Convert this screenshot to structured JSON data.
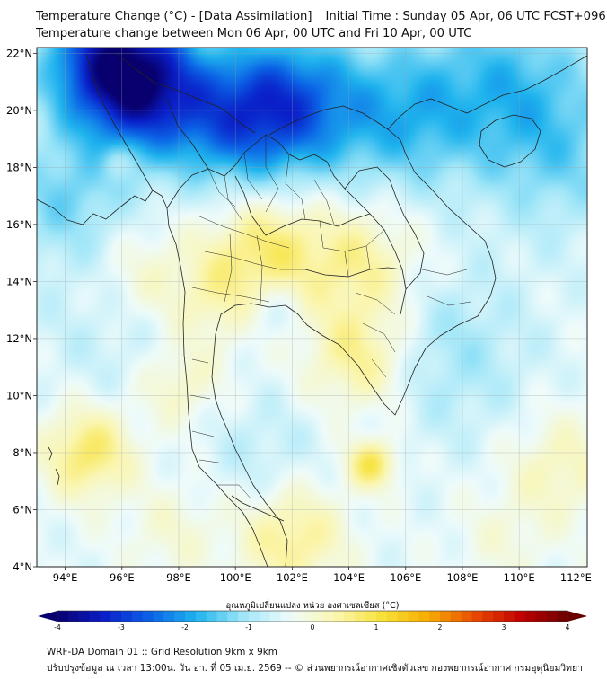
{
  "title_line1": "Temperature Change (°C) - [Data Assimilation] _ Initial Time : Sunday 05 Apr, 06 UTC FCST+096",
  "title_line2": "Temperature change between Mon 06 Apr, 00 UTC and Fri 10 Apr, 00 UTC",
  "chart_data": {
    "type": "heatmap",
    "x_ticks": [
      {
        "value": 94,
        "label": "94°E"
      },
      {
        "value": 96,
        "label": "96°E"
      },
      {
        "value": 98,
        "label": "98°E"
      },
      {
        "value": 100,
        "label": "100°E"
      },
      {
        "value": 102,
        "label": "102°E"
      },
      {
        "value": 104,
        "label": "104°E"
      },
      {
        "value": 106,
        "label": "106°E"
      },
      {
        "value": 108,
        "label": "108°E"
      },
      {
        "value": 110,
        "label": "110°E"
      },
      {
        "value": 112,
        "label": "112°E"
      }
    ],
    "y_ticks": [
      {
        "value": 22,
        "label": "22°N"
      },
      {
        "value": 20,
        "label": "20°N"
      },
      {
        "value": 18,
        "label": "18°N"
      },
      {
        "value": 16,
        "label": "16°N"
      },
      {
        "value": 14,
        "label": "14°N"
      },
      {
        "value": 12,
        "label": "12°N"
      },
      {
        "value": 10,
        "label": "10°N"
      },
      {
        "value": 8,
        "label": "8°N"
      },
      {
        "value": 6,
        "label": "6°N"
      },
      {
        "value": 4,
        "label": "4°N"
      }
    ],
    "lon_range": [
      93,
      112.4
    ],
    "lat_range": [
      4,
      22.2
    ],
    "grid": true,
    "colorbar": {
      "label": "อุณหภูมิเปลี่ยนแปลง หน่วย องศาเซลเซียส (°C)",
      "min": -4,
      "max": 4,
      "ticks": [
        -4,
        -3,
        -2,
        -1,
        0,
        1,
        2,
        3,
        4
      ],
      "colors": [
        "#08006e",
        "#0a1ec8",
        "#0b63e6",
        "#1fb4ee",
        "#9fe6f8",
        "#eefbfb",
        "#fbf6b0",
        "#f7e23a",
        "#f7ac00",
        "#e84a00",
        "#c00000",
        "#6a0000"
      ]
    },
    "field_features": [
      {
        "lon": 95.6,
        "lat": 21.8,
        "value": -3.1,
        "spread": 1.6
      },
      {
        "lon": 96.8,
        "lat": 20.6,
        "value": -2.3,
        "spread": 1.5
      },
      {
        "lon": 101.8,
        "lat": 20.2,
        "value": -2.5,
        "spread": 1.7
      },
      {
        "lon": 99.6,
        "lat": 19.6,
        "value": -1.6,
        "spread": 1.6
      },
      {
        "lon": 105.8,
        "lat": 19.8,
        "value": -1.4,
        "spread": 1.8
      },
      {
        "lon": 109.5,
        "lat": 21.0,
        "value": -1.2,
        "spread": 2.0
      },
      {
        "lon": 94.0,
        "lat": 17.0,
        "value": -1.0,
        "spread": 1.6
      },
      {
        "lon": 111.5,
        "lat": 18.5,
        "value": -0.9,
        "spread": 2.0
      },
      {
        "lon": 107.5,
        "lat": 11.5,
        "value": -0.7,
        "spread": 2.0
      },
      {
        "lon": 101.2,
        "lat": 13.0,
        "value": -0.6,
        "spread": 0.8
      },
      {
        "lon": 96.0,
        "lat": 12.5,
        "value": -0.4,
        "spread": 2.0
      },
      {
        "lon": 95.8,
        "lat": 18.2,
        "value": 0.6,
        "spread": 0.4
      },
      {
        "lon": 101.0,
        "lat": 15.2,
        "value": 1.3,
        "spread": 1.4
      },
      {
        "lon": 104.3,
        "lat": 14.6,
        "value": 1.1,
        "spread": 1.5
      },
      {
        "lon": 104.4,
        "lat": 11.3,
        "value": 1.2,
        "spread": 1.3
      },
      {
        "lon": 99.4,
        "lat": 13.3,
        "value": 0.8,
        "spread": 1.2
      },
      {
        "lon": 96.8,
        "lat": 14.2,
        "value": 0.7,
        "spread": 1.3
      },
      {
        "lon": 94.8,
        "lat": 8.0,
        "value": 1.5,
        "spread": 1.1
      },
      {
        "lon": 98.0,
        "lat": 10.4,
        "value": 0.8,
        "spread": 1.0
      },
      {
        "lon": 104.8,
        "lat": 7.6,
        "value": 1.6,
        "spread": 0.6
      },
      {
        "lon": 102.0,
        "lat": 5.0,
        "value": 1.2,
        "spread": 1.3
      },
      {
        "lon": 97.8,
        "lat": 5.2,
        "value": 0.5,
        "spread": 1.2
      },
      {
        "lon": 111.5,
        "lat": 7.5,
        "value": 0.8,
        "spread": 1.3
      },
      {
        "lon": 109.5,
        "lat": 5.0,
        "value": 0.4,
        "spread": 1.2
      },
      {
        "lon": 101.0,
        "lat": 8.0,
        "value": -0.4,
        "spread": 1.4
      }
    ]
  },
  "footer_line1": "WRF-DA Domain 01 :: Grid Resolution 9km x 9km",
  "footer_line2": "ปรับปรุงข้อมูล ณ เวลา 13:00น. วัน อา. ที่ 05 เม.ย. 2569 -- © ส่วนพยากรณ์อากาศเชิงตัวเลข กองพยากรณ์อากาศ กรมอุตุนิยมวิทยา"
}
